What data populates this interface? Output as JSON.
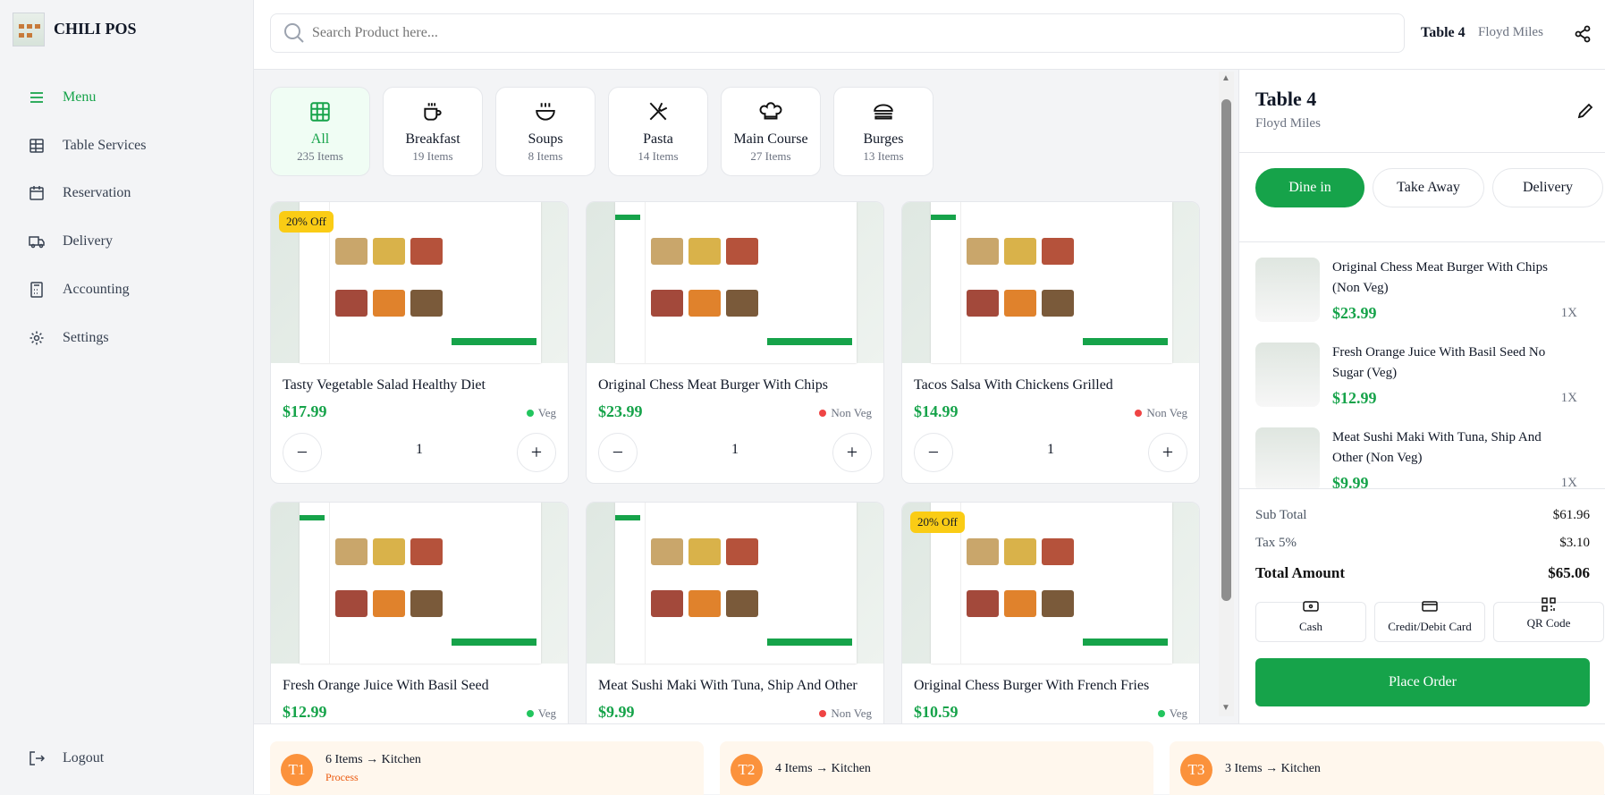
{
  "brand": {
    "name": "CHILI POS"
  },
  "sidebar": {
    "items": [
      {
        "label": "Menu",
        "icon": "menu-icon",
        "active": true
      },
      {
        "label": "Table Services",
        "icon": "table-icon"
      },
      {
        "label": "Reservation",
        "icon": "calendar-icon"
      },
      {
        "label": "Delivery",
        "icon": "truck-icon"
      },
      {
        "label": "Accounting",
        "icon": "calculator-icon"
      },
      {
        "label": "Settings",
        "icon": "gear-icon"
      }
    ],
    "logout": "Logout"
  },
  "header": {
    "search_placeholder": "Search Product here...",
    "table": "Table 4",
    "customer": "Floyd Miles"
  },
  "categories": [
    {
      "name": "All",
      "count": "235 Items",
      "icon": "grid-icon"
    },
    {
      "name": "Breakfast",
      "count": "19 Items",
      "icon": "coffee-icon"
    },
    {
      "name": "Soups",
      "count": "8 Items",
      "icon": "soup-icon"
    },
    {
      "name": "Pasta",
      "count": "14 Items",
      "icon": "utensils-icon"
    },
    {
      "name": "Main Course",
      "count": "27 Items",
      "icon": "chef-hat-icon"
    },
    {
      "name": "Burges",
      "count": "13 Items",
      "icon": "burger-icon"
    }
  ],
  "products": [
    {
      "name": "Tasty Vegetable Salad Healthy Diet",
      "price": "$17.99",
      "type": "Veg",
      "qty": "1",
      "badge": "20% Off"
    },
    {
      "name": "Original Chess Meat Burger With Chips",
      "price": "$23.99",
      "type": "Non Veg",
      "qty": "1"
    },
    {
      "name": "Tacos Salsa With Chickens Grilled",
      "price": "$14.99",
      "type": "Non Veg",
      "qty": "1"
    },
    {
      "name": "Fresh Orange Juice With Basil Seed",
      "price": "$12.99",
      "type": "Veg"
    },
    {
      "name": "Meat Sushi Maki With Tuna, Ship And Other",
      "price": "$9.99",
      "type": "Non Veg"
    },
    {
      "name": "Original Chess Burger With French Fries",
      "price": "$10.59",
      "type": "Veg",
      "badge": "20% Off"
    }
  ],
  "order": {
    "table": "Table 4",
    "customer": "Floyd Miles",
    "types": [
      "Dine in",
      "Take Away",
      "Delivery"
    ],
    "active_type": "Dine in",
    "items": [
      {
        "name": "Original Chess Meat Burger With Chips (Non Veg)",
        "price": "$23.99",
        "qty": "1X"
      },
      {
        "name": "Fresh Orange Juice With Basil Seed No Sugar (Veg)",
        "price": "$12.99",
        "qty": "1X"
      },
      {
        "name": "Meat Sushi Maki With Tuna, Ship And Other (Non Veg)",
        "price": "$9.99",
        "qty": "1X"
      }
    ],
    "subtotal_label": "Sub Total",
    "subtotal": "$61.96",
    "tax_label": "Tax 5%",
    "tax": "$3.10",
    "total_label": "Total Amount",
    "total": "$65.06",
    "payments": [
      "Cash",
      "Credit/Debit Card",
      "QR Code"
    ],
    "place_order": "Place Order"
  },
  "tickets": [
    {
      "id": "T1",
      "text": "6 Items → Kitchen",
      "status": "Process"
    },
    {
      "id": "T2",
      "text": "4 Items → Kitchen"
    },
    {
      "id": "T3",
      "text": "3 Items → Kitchen"
    }
  ],
  "colors": {
    "accent": "#16a34a",
    "veg": "#22c55e",
    "nonveg": "#ef4444",
    "badge": "#facc15",
    "ticket": "#fb923c"
  }
}
